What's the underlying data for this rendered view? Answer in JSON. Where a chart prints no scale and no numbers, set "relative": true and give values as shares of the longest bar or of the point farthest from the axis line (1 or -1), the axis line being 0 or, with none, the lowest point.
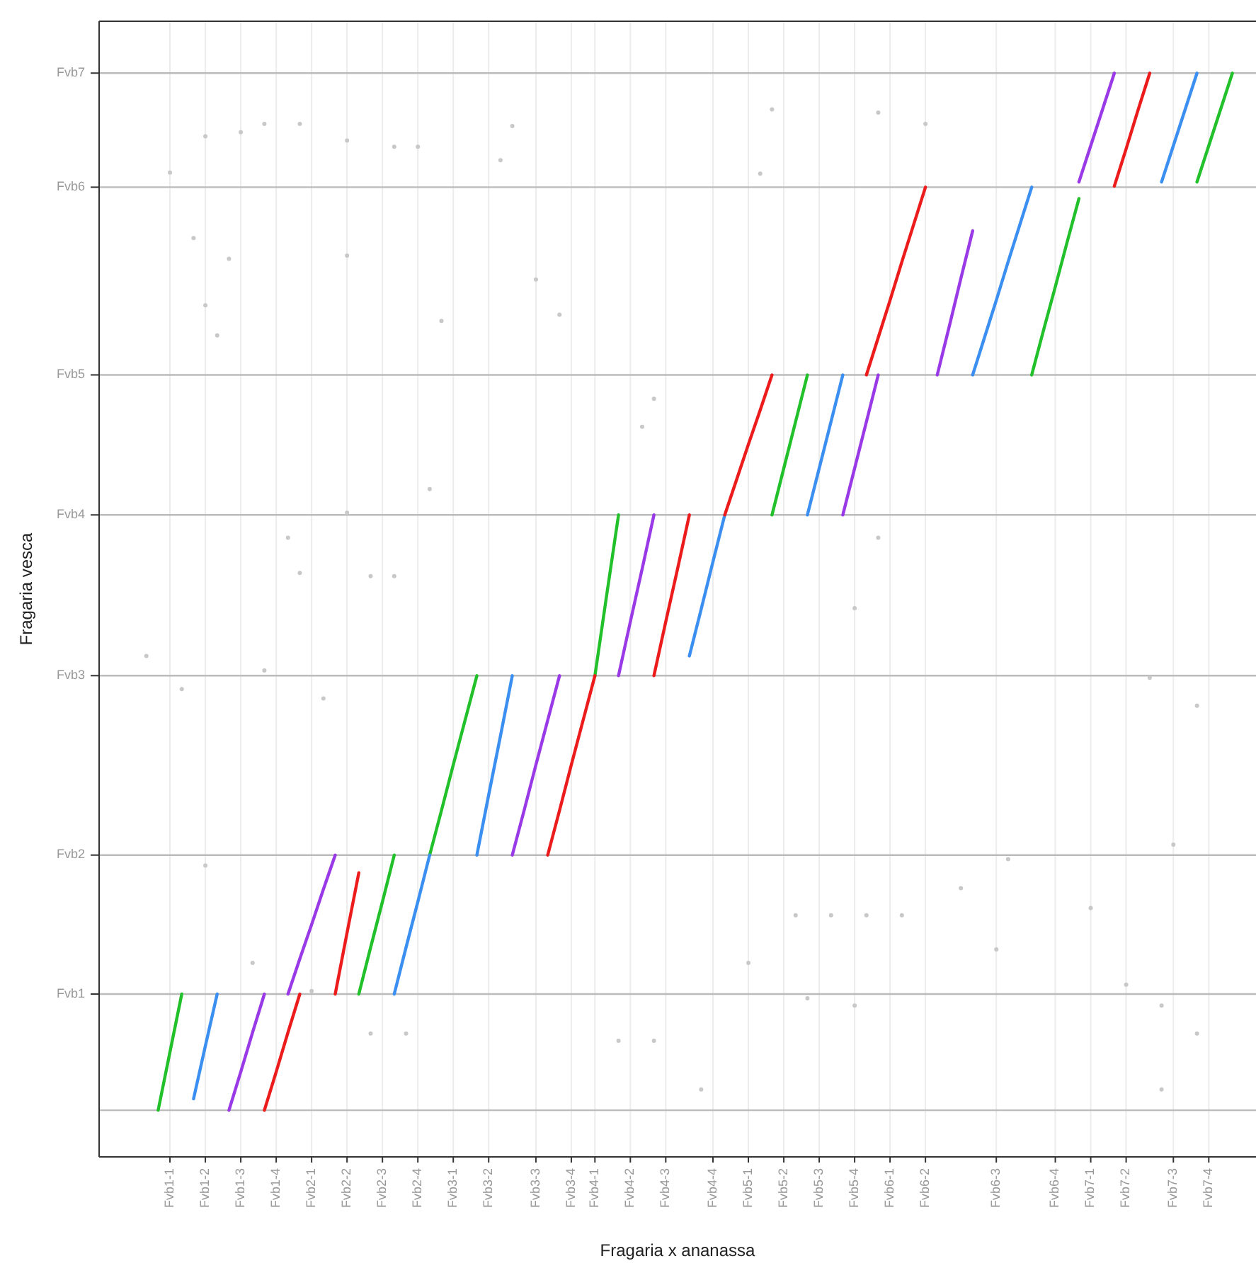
{
  "chart_data": {
    "type": "line",
    "relative": true,
    "xlabel": "Fragaria x ananassa",
    "ylabel": "Fragaria vesca",
    "categories": [
      null,
      null,
      null,
      null,
      null,
      null,
      "Fvb1-1",
      null,
      null,
      "Fvb1-2",
      null,
      null,
      "Fvb1-3",
      null,
      null,
      "Fvb1-4",
      null,
      null,
      "Fvb2-1",
      null,
      null,
      "Fvb2-2",
      null,
      null,
      "Fvb2-3",
      null,
      null,
      "Fvb2-4",
      null,
      null,
      "Fvb3-1",
      null,
      null,
      "Fvb3-2",
      null,
      null,
      null,
      "Fvb3-3",
      null,
      null,
      "Fvb3-4",
      null,
      "Fvb4-1",
      null,
      null,
      "Fvb4-2",
      null,
      null,
      "Fvb4-3",
      null,
      null,
      null,
      "Fvb4-4",
      null,
      null,
      "Fvb5-1",
      null,
      null,
      "Fvb5-2",
      null,
      null,
      "Fvb5-3",
      null,
      null,
      "Fvb5-4",
      null,
      null,
      "Fvb6-1",
      null,
      null,
      "Fvb6-2",
      null,
      null,
      null,
      null,
      null,
      "Fvb6-3",
      null,
      null,
      null,
      null,
      "Fvb6-4",
      null,
      null,
      "Fvb7-1",
      null,
      null,
      "Fvb7-2",
      null,
      null,
      null,
      "Fvb7-3",
      null,
      null,
      "Fvb7-4",
      null,
      null,
      null,
      null
    ],
    "grid": "x",
    "marker": "none",
    "line_style": "solid",
    "ref_lines": [
      {
        "axis": "y",
        "value": 0,
        "color": "#bbbbbb"
      },
      {
        "axis": "y",
        "value": 0.112,
        "color": "#bbbbbb",
        "label": "Fvb1"
      },
      {
        "axis": "y",
        "value": 0.246,
        "color": "#bbbbbb",
        "label": "Fvb2"
      },
      {
        "axis": "y",
        "value": 0.419,
        "color": "#bbbbbb",
        "label": "Fvb3"
      },
      {
        "axis": "y",
        "value": 0.574,
        "color": "#bbbbbb",
        "label": "Fvb4"
      },
      {
        "axis": "y",
        "value": 0.709,
        "color": "#bbbbbb",
        "label": "Fvb5"
      },
      {
        "axis": "y",
        "value": 0.89,
        "color": "#bbbbbb",
        "label": "Fvb6"
      },
      {
        "axis": "y",
        "value": 1,
        "color": "#bbbbbb",
        "label": "Fvb7"
      }
    ],
    "series": [
      {
        "type": "scatter",
        "color": "#c8c8c8",
        "marker": "circle",
        "values": [
          null,
          null,
          null,
          null,
          0.438,
          null,
          0.904,
          0.406,
          null,
          0.939,
          0.747,
          0.821,
          0.943,
          0.142,
          0.951,
          null,
          0.552,
          0.951,
          0.115,
          0.397,
          null,
          0.935,
          null,
          0.515,
          null,
          0.929,
          0.074,
          0.929,
          0.599,
          0.761,
          null,
          null,
          null,
          null,
          0.916,
          0.949,
          null,
          0.801,
          null,
          0.767,
          null,
          null,
          null,
          null,
          0.067,
          null,
          0.659,
          0.067,
          null,
          null,
          null,
          0.02,
          null,
          null,
          null,
          0.142,
          0.903,
          0.965,
          null,
          0.188,
          0.108,
          null,
          0.188,
          null,
          0.101,
          0.188,
          0.962,
          null,
          0.188,
          null,
          0.951,
          null,
          null,
          0.214,
          null,
          null,
          0.155,
          0.242,
          null,
          null,
          null,
          null,
          null,
          null,
          0.195,
          null,
          null,
          0.121,
          null,
          0.417,
          0.101,
          0.256,
          null,
          0.074,
          null,
          null,
          null,
          null,
          null
        ]
      },
      {
        "type": "scatter",
        "color": "#c8c8c8",
        "marker": "circle",
        "values": [
          null,
          null,
          null,
          null,
          null,
          null,
          null,
          null,
          0.841,
          0.776,
          null,
          null,
          null,
          null,
          0.424,
          null,
          null,
          0.518,
          null,
          null,
          null,
          0.824,
          null,
          0.074,
          null,
          0.515,
          null,
          null,
          null,
          null,
          null,
          null,
          null,
          null,
          null,
          null,
          null,
          null,
          null,
          null,
          null,
          null,
          null,
          null,
          null,
          null,
          null,
          0.686,
          null,
          null,
          null,
          null,
          null,
          null,
          null,
          null,
          null,
          null,
          null,
          null,
          null,
          null,
          null,
          null,
          0.484,
          null,
          0.552,
          null,
          null,
          null,
          null,
          null,
          null,
          null,
          null,
          null,
          null,
          null,
          null,
          null,
          null,
          null,
          null,
          null,
          null,
          null,
          null,
          null,
          null,
          null,
          0.02,
          null,
          null,
          0.39,
          null,
          null,
          null,
          null,
          null
        ]
      },
      {
        "type": "scatter",
        "color": "#c8c8c8",
        "marker": "circle",
        "values": [
          null,
          null,
          null,
          null,
          null,
          null,
          null,
          null,
          null,
          0.236,
          null,
          null,
          null,
          null,
          null,
          null,
          null,
          null,
          null,
          null,
          null,
          0.576,
          null,
          null,
          null,
          null,
          null,
          null,
          null,
          null,
          null,
          null,
          null,
          null,
          null,
          null,
          null,
          null,
          null,
          null,
          null,
          null,
          null,
          null,
          null,
          null,
          null,
          null,
          null,
          null,
          null,
          null,
          null,
          null,
          null,
          null,
          null,
          null,
          null,
          null,
          null,
          null,
          null,
          null,
          null,
          null,
          null,
          null,
          null,
          null,
          null,
          null,
          null,
          null,
          null,
          null,
          null,
          null,
          null,
          null,
          null,
          null,
          null,
          null,
          null,
          null,
          null,
          null,
          null,
          null,
          null,
          null,
          null,
          null,
          null,
          null,
          null,
          null,
          null
        ]
      },
      {
        "color": "#22c02a",
        "values": [
          null,
          null,
          null,
          null,
          null,
          0,
          0.056,
          0.112,
          null,
          null,
          null,
          null,
          null,
          null,
          null,
          null,
          null,
          null,
          null,
          null,
          null,
          null,
          0.112,
          0.157,
          0.201,
          0.246,
          null,
          null,
          0.246,
          0.289,
          0.333,
          0.376,
          0.419,
          null,
          null,
          null,
          null,
          null,
          null,
          null,
          null,
          null,
          0.419,
          0.497,
          0.574,
          null,
          null,
          null,
          null,
          null,
          null,
          null,
          null,
          null,
          null,
          null,
          null,
          0.574,
          0.619,
          0.664,
          0.709,
          null,
          null,
          null,
          null,
          null,
          null,
          null,
          null,
          null,
          null,
          null,
          null,
          null,
          null,
          null,
          null,
          null,
          null,
          0.709,
          0.752,
          0.794,
          0.837,
          0.879,
          null,
          null,
          null,
          null,
          null,
          null,
          null,
          null,
          null,
          0.895,
          0.93,
          0.965,
          1,
          null,
          null
        ]
      },
      {
        "color": "#3b8ff0",
        "values": [
          null,
          null,
          null,
          null,
          null,
          null,
          null,
          null,
          0.011,
          0.062,
          0.112,
          null,
          null,
          null,
          null,
          null,
          null,
          null,
          null,
          null,
          null,
          null,
          null,
          null,
          null,
          0.112,
          0.157,
          0.201,
          0.246,
          null,
          null,
          null,
          0.246,
          0.304,
          0.361,
          0.419,
          null,
          null,
          null,
          null,
          null,
          null,
          null,
          null,
          null,
          null,
          null,
          null,
          null,
          null,
          0.438,
          0.483,
          0.529,
          0.574,
          null,
          null,
          null,
          null,
          null,
          null,
          0.574,
          0.619,
          0.664,
          0.709,
          null,
          null,
          null,
          null,
          null,
          null,
          null,
          null,
          null,
          null,
          0.709,
          0.745,
          0.781,
          0.818,
          0.854,
          0.89,
          null,
          null,
          null,
          null,
          null,
          null,
          null,
          null,
          null,
          null,
          0.895,
          0.93,
          0.965,
          1,
          null,
          null,
          null,
          null,
          null
        ]
      },
      {
        "color": "#9a3ae6",
        "values": [
          null,
          null,
          null,
          null,
          null,
          null,
          null,
          null,
          null,
          null,
          null,
          0,
          0.037,
          0.075,
          0.112,
          null,
          0.112,
          0.146,
          0.179,
          0.213,
          0.246,
          null,
          null,
          null,
          null,
          null,
          null,
          null,
          null,
          null,
          null,
          null,
          null,
          null,
          null,
          0.246,
          0.289,
          0.333,
          0.376,
          0.419,
          null,
          null,
          null,
          null,
          0.419,
          0.471,
          0.522,
          0.574,
          null,
          null,
          null,
          null,
          null,
          null,
          null,
          null,
          null,
          null,
          null,
          null,
          null,
          null,
          null,
          0.574,
          0.619,
          0.664,
          0.709,
          null,
          null,
          null,
          null,
          0.709,
          0.755,
          0.802,
          0.848,
          null,
          null,
          null,
          null,
          null,
          null,
          null,
          null,
          0.895,
          0.93,
          0.965,
          1,
          null,
          null,
          null,
          null,
          null,
          null,
          null,
          null,
          null,
          null,
          null,
          null
        ]
      },
      {
        "color": "#ec1c1c",
        "values": [
          null,
          null,
          null,
          null,
          null,
          null,
          null,
          null,
          null,
          null,
          null,
          null,
          null,
          null,
          0,
          0.037,
          0.075,
          0.112,
          null,
          null,
          0.112,
          0.171,
          0.229,
          null,
          null,
          null,
          null,
          null,
          null,
          null,
          null,
          null,
          null,
          null,
          null,
          null,
          null,
          null,
          0.246,
          0.289,
          0.333,
          0.376,
          0.419,
          null,
          null,
          null,
          null,
          0.419,
          0.471,
          0.522,
          0.574,
          null,
          null,
          0.574,
          0.608,
          0.642,
          0.675,
          0.709,
          null,
          null,
          null,
          null,
          null,
          null,
          null,
          0.709,
          0.745,
          0.781,
          0.818,
          0.854,
          0.89,
          null,
          null,
          null,
          null,
          null,
          null,
          null,
          null,
          null,
          null,
          null,
          null,
          null,
          null,
          null,
          0.891,
          0.927,
          0.964,
          1,
          null,
          null,
          null,
          null,
          null,
          null,
          null,
          null,
          null
        ]
      }
    ]
  }
}
